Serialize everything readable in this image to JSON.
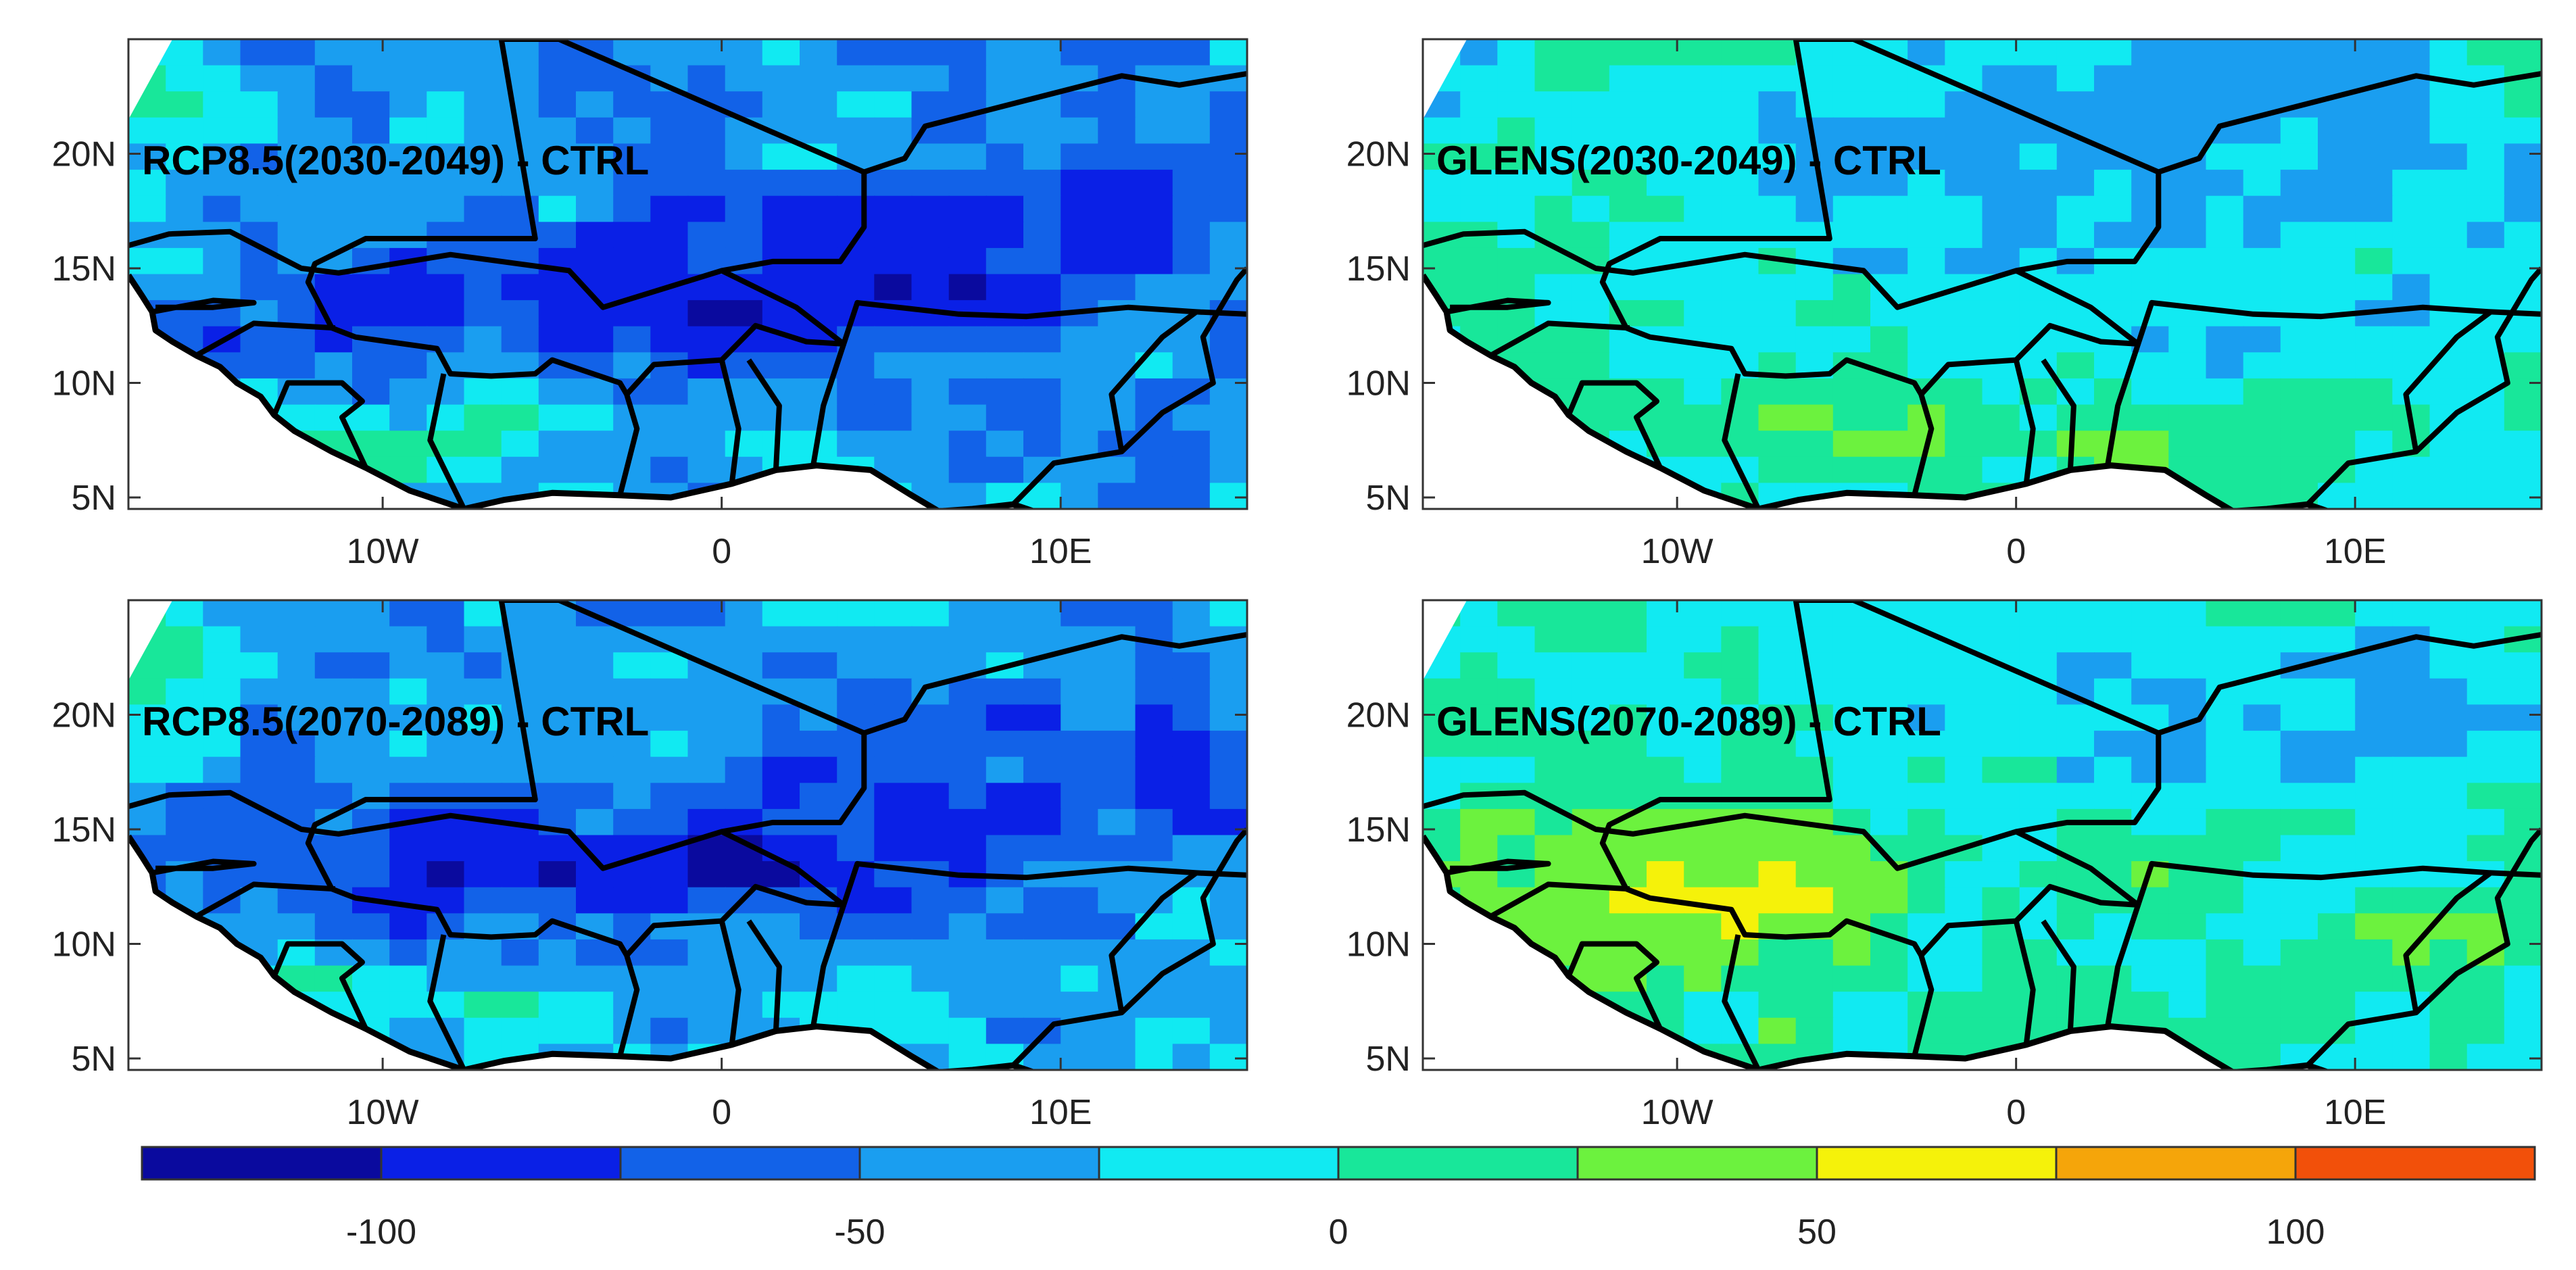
{
  "panels": [
    {
      "title": "RCP8.5(2030-2049) - CTRL",
      "scenario": "RCP8.5",
      "period": "2030-2049",
      "pattern": "rcp"
    },
    {
      "title": "GLENS(2030-2049) - CTRL",
      "scenario": "GLENS",
      "period": "2030-2049",
      "pattern": "glens_early"
    },
    {
      "title": "RCP8.5(2070-2089) - CTRL",
      "scenario": "RCP8.5",
      "period": "2070-2089",
      "pattern": "rcp"
    },
    {
      "title": "GLENS(2070-2089) - CTRL",
      "scenario": "GLENS",
      "period": "2070-2089",
      "pattern": "glens_late"
    }
  ],
  "axes": {
    "x_ticks": [
      {
        "label": "10W",
        "lon": -10
      },
      {
        "label": "0",
        "lon": 0
      },
      {
        "label": "10E",
        "lon": 10
      }
    ],
    "y_ticks": [
      {
        "label": "20N",
        "lat": 20
      },
      {
        "label": "15N",
        "lat": 15
      },
      {
        "label": "10N",
        "lat": 10
      },
      {
        "label": "5N",
        "lat": 5
      }
    ],
    "lon_range": [
      -17.5,
      15.5
    ],
    "lat_range": [
      4.5,
      25
    ]
  },
  "colorbar": {
    "range": [
      -125,
      125
    ],
    "step": 25,
    "colors": [
      "#0a0a9e",
      "#0a20e6",
      "#1262e8",
      "#1a9ef0",
      "#11eaf2",
      "#18e79a",
      "#6cf23e",
      "#f5f20a",
      "#f5a50a",
      "#f2500a"
    ],
    "tick_labels": [
      {
        "label": "-100",
        "value": -100
      },
      {
        "label": "-50",
        "value": -50
      },
      {
        "label": "0",
        "value": 0
      },
      {
        "label": "50",
        "value": 50
      },
      {
        "label": "100",
        "value": 100
      }
    ]
  }
}
